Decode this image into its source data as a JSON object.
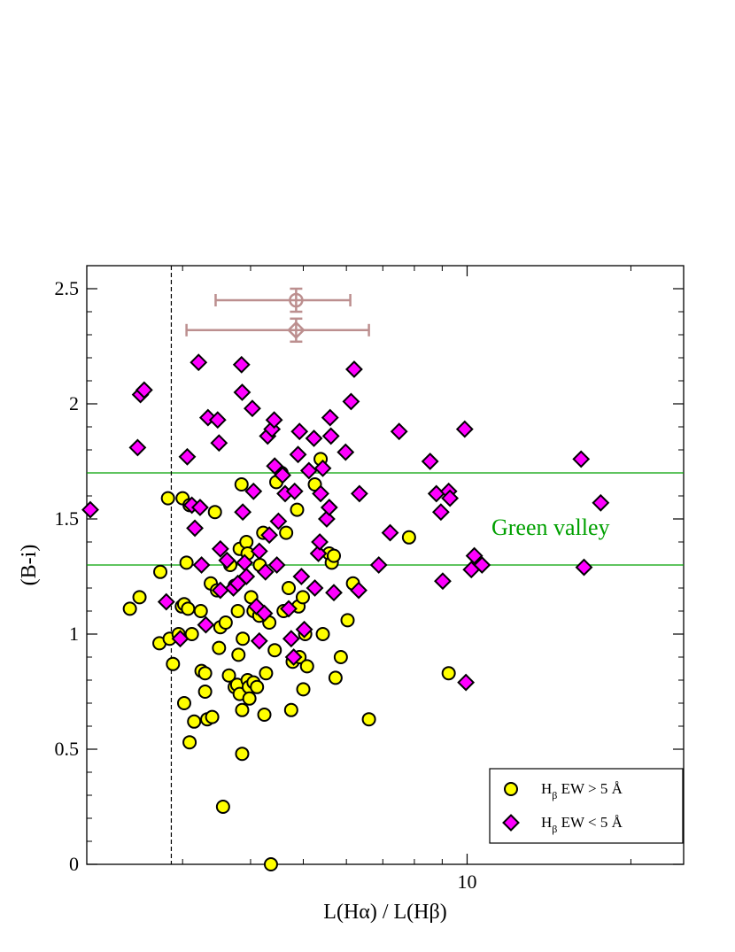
{
  "chart_data": {
    "type": "scatter",
    "title": "",
    "xlabel": "L(Hα) / L(Hβ)",
    "ylabel": "(B-i)",
    "x_scale": "log",
    "xlim": [
      2,
      25
    ],
    "ylim": [
      0,
      2.6
    ],
    "x_ticks": [
      10
    ],
    "x_tick_labels": [
      "10"
    ],
    "x_minor_ticks": [
      2,
      3,
      4,
      5,
      6,
      7,
      8,
      9,
      20
    ],
    "y_ticks": [
      0,
      0.5,
      1,
      1.5,
      2,
      2.5
    ],
    "y_tick_labels": [
      "0",
      "0.5",
      "1",
      "1.5",
      "2",
      "2.5"
    ],
    "grid": false,
    "legend_position": "bottom-right",
    "colors": {
      "circle_fill": "#ffff00",
      "diamond_fill": "#ff00ff",
      "marker_edge": "#000000",
      "green_lines": "#00a000",
      "error_bar": "#bc8f8f",
      "dashed_line": "#000000"
    },
    "annotation": {
      "text": "Green valley",
      "color": "#00a000"
    },
    "reference_lines": {
      "horizontal_y": [
        1.3,
        1.7
      ],
      "vertical_x": 2.86
    },
    "legend_entries": [
      {
        "marker": "circle",
        "label_main": "H",
        "label_sub": "β",
        "label_rest": " EW > 5 Å"
      },
      {
        "marker": "diamond",
        "label_main": "H",
        "label_sub": "β",
        "label_rest": " EW < 5 Å"
      }
    ],
    "error_bars": [
      {
        "marker": "circle",
        "x": 4.85,
        "y": 2.45,
        "xerr_low": 3.45,
        "xerr_high": 6.1,
        "yerr": 0.05
      },
      {
        "marker": "diamond",
        "x": 4.85,
        "y": 2.32,
        "xerr_low": 3.05,
        "xerr_high": 6.6,
        "yerr": 0.05
      }
    ],
    "series": [
      {
        "name": "Hβ EW > 5 Å",
        "marker": "circle",
        "points": [
          [
            2.4,
            1.11
          ],
          [
            2.5,
            1.16
          ],
          [
            2.73,
            1.27
          ],
          [
            2.82,
            1.59
          ],
          [
            2.72,
            0.96
          ],
          [
            2.84,
            0.98
          ],
          [
            2.88,
            0.87
          ],
          [
            2.95,
            1.0
          ],
          [
            2.99,
            1.12
          ],
          [
            3.0,
            1.59
          ],
          [
            3.02,
            1.13
          ],
          [
            3.02,
            0.7
          ],
          [
            3.05,
            1.31
          ],
          [
            3.07,
            1.11
          ],
          [
            3.09,
            1.56
          ],
          [
            3.09,
            0.53
          ],
          [
            3.12,
            1.0
          ],
          [
            3.15,
            0.62
          ],
          [
            3.24,
            1.1
          ],
          [
            3.25,
            0.84
          ],
          [
            3.3,
            0.83
          ],
          [
            3.3,
            0.75
          ],
          [
            3.33,
            0.63
          ],
          [
            3.38,
            1.22
          ],
          [
            3.4,
            0.64
          ],
          [
            3.44,
            1.53
          ],
          [
            3.47,
            1.19
          ],
          [
            3.5,
            0.94
          ],
          [
            3.52,
            1.03
          ],
          [
            3.56,
            0.25
          ],
          [
            3.6,
            1.05
          ],
          [
            3.65,
            0.82
          ],
          [
            3.67,
            1.3
          ],
          [
            3.74,
            0.77
          ],
          [
            3.74,
            1.21
          ],
          [
            3.78,
            0.78
          ],
          [
            3.79,
            1.1
          ],
          [
            3.8,
            0.91
          ],
          [
            3.82,
            1.37
          ],
          [
            3.82,
            0.74
          ],
          [
            3.85,
            1.65
          ],
          [
            3.86,
            0.67
          ],
          [
            3.86,
            0.48
          ],
          [
            3.87,
            0.98
          ],
          [
            3.93,
            1.4
          ],
          [
            3.95,
            1.35
          ],
          [
            3.95,
            0.8
          ],
          [
            3.97,
            0.77
          ],
          [
            3.98,
            0.72
          ],
          [
            4.01,
            1.16
          ],
          [
            4.05,
            1.1
          ],
          [
            4.05,
            0.79
          ],
          [
            4.11,
            0.77
          ],
          [
            4.15,
            1.08
          ],
          [
            4.16,
            1.3
          ],
          [
            4.22,
            1.44
          ],
          [
            4.24,
            0.65
          ],
          [
            4.27,
            0.83
          ],
          [
            4.33,
            1.05
          ],
          [
            4.36,
            0.0
          ],
          [
            4.43,
            0.93
          ],
          [
            4.46,
            1.66
          ],
          [
            4.56,
            1.7
          ],
          [
            4.6,
            1.1
          ],
          [
            4.65,
            1.44
          ],
          [
            4.7,
            1.2
          ],
          [
            4.75,
            0.67
          ],
          [
            4.78,
            0.88
          ],
          [
            4.87,
            1.54
          ],
          [
            4.9,
            1.12
          ],
          [
            4.92,
            0.9
          ],
          [
            4.99,
            1.16
          ],
          [
            5.0,
            0.76
          ],
          [
            5.04,
            1.0
          ],
          [
            5.08,
            0.86
          ],
          [
            5.25,
            1.65
          ],
          [
            5.38,
            1.76
          ],
          [
            5.43,
            1.0
          ],
          [
            5.58,
            1.35
          ],
          [
            5.64,
            1.31
          ],
          [
            5.69,
            1.34
          ],
          [
            5.73,
            0.81
          ],
          [
            5.86,
            0.9
          ],
          [
            6.03,
            1.06
          ],
          [
            6.17,
            1.22
          ],
          [
            6.6,
            0.63
          ],
          [
            7.82,
            1.42
          ],
          [
            9.25,
            0.83
          ]
        ]
      },
      {
        "name": "Hβ EW < 5 Å",
        "marker": "diamond",
        "points": [
          [
            2.03,
            1.54
          ],
          [
            2.48,
            1.81
          ],
          [
            2.51,
            2.04
          ],
          [
            2.55,
            2.06
          ],
          [
            2.8,
            1.14
          ],
          [
            2.97,
            0.98
          ],
          [
            3.06,
            1.77
          ],
          [
            3.12,
            1.56
          ],
          [
            3.16,
            1.46
          ],
          [
            3.21,
            2.18
          ],
          [
            3.23,
            1.55
          ],
          [
            3.25,
            1.3
          ],
          [
            3.31,
            1.04
          ],
          [
            3.34,
            1.94
          ],
          [
            3.48,
            1.93
          ],
          [
            3.5,
            1.83
          ],
          [
            3.52,
            1.37
          ],
          [
            3.52,
            1.19
          ],
          [
            3.62,
            1.32
          ],
          [
            3.72,
            1.2
          ],
          [
            3.79,
            1.22
          ],
          [
            3.85,
            2.17
          ],
          [
            3.86,
            2.05
          ],
          [
            3.87,
            1.53
          ],
          [
            3.9,
            1.31
          ],
          [
            3.93,
            1.25
          ],
          [
            4.03,
            1.98
          ],
          [
            4.05,
            1.62
          ],
          [
            4.1,
            1.12
          ],
          [
            4.15,
            0.97
          ],
          [
            4.15,
            1.36
          ],
          [
            4.24,
            1.09
          ],
          [
            4.26,
            1.27
          ],
          [
            4.3,
            1.86
          ],
          [
            4.33,
            1.43
          ],
          [
            4.38,
            1.89
          ],
          [
            4.42,
            1.93
          ],
          [
            4.43,
            1.73
          ],
          [
            4.47,
            1.3
          ],
          [
            4.5,
            1.49
          ],
          [
            4.58,
            1.69
          ],
          [
            4.63,
            1.61
          ],
          [
            4.7,
            1.11
          ],
          [
            4.75,
            0.98
          ],
          [
            4.8,
            0.9
          ],
          [
            4.82,
            1.62
          ],
          [
            4.89,
            1.78
          ],
          [
            4.92,
            1.88
          ],
          [
            4.96,
            1.25
          ],
          [
            5.02,
            1.02
          ],
          [
            5.12,
            1.71
          ],
          [
            5.23,
            1.85
          ],
          [
            5.25,
            1.2
          ],
          [
            5.33,
            1.35
          ],
          [
            5.36,
            1.4
          ],
          [
            5.38,
            1.61
          ],
          [
            5.43,
            1.72
          ],
          [
            5.52,
            1.5
          ],
          [
            5.58,
            1.55
          ],
          [
            5.6,
            1.94
          ],
          [
            5.62,
            1.86
          ],
          [
            5.69,
            1.18
          ],
          [
            5.98,
            1.79
          ],
          [
            6.12,
            2.01
          ],
          [
            6.2,
            2.15
          ],
          [
            6.32,
            1.19
          ],
          [
            6.34,
            1.61
          ],
          [
            6.88,
            1.3
          ],
          [
            7.22,
            1.44
          ],
          [
            7.5,
            1.88
          ],
          [
            8.55,
            1.75
          ],
          [
            8.78,
            1.61
          ],
          [
            8.95,
            1.53
          ],
          [
            9.02,
            1.23
          ],
          [
            9.25,
            1.62
          ],
          [
            9.3,
            1.59
          ],
          [
            9.9,
            1.89
          ],
          [
            9.95,
            0.79
          ],
          [
            10.18,
            1.28
          ],
          [
            10.31,
            1.34
          ],
          [
            10.65,
            1.3
          ],
          [
            16.2,
            1.76
          ],
          [
            16.4,
            1.29
          ],
          [
            17.6,
            1.57
          ]
        ]
      }
    ]
  }
}
